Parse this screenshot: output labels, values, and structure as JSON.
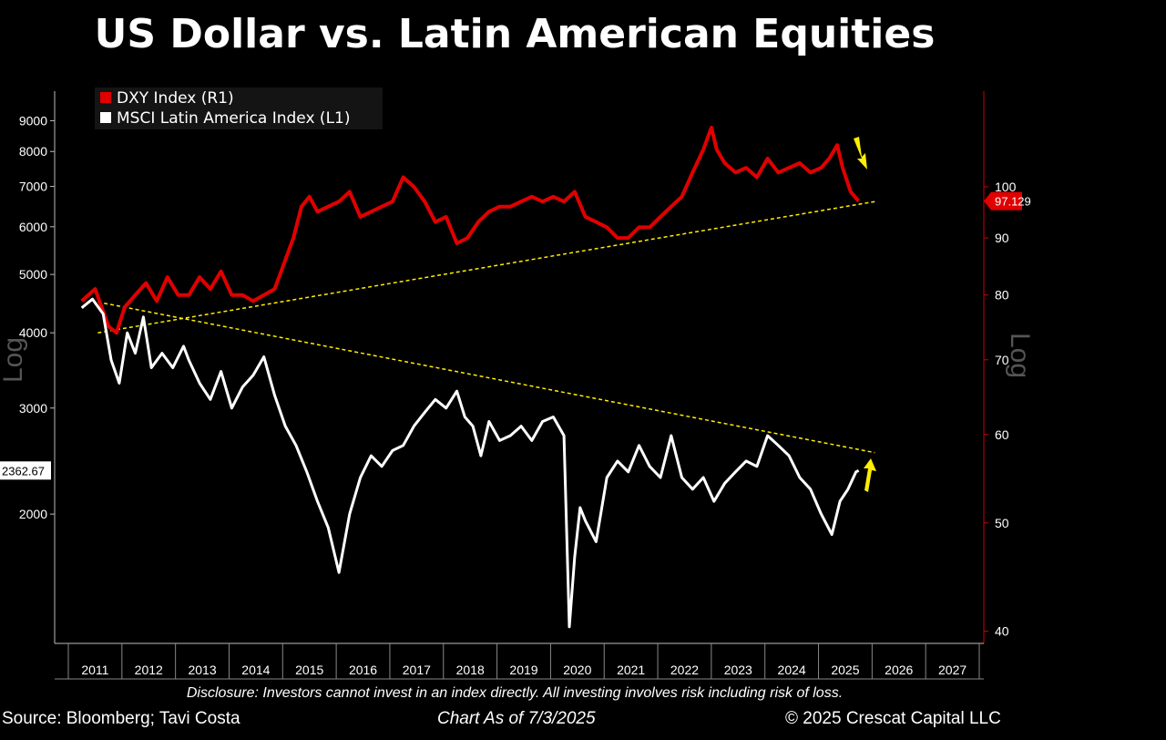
{
  "title": "US Dollar vs. Latin American Equities",
  "disclosure": "Disclosure: Investors cannot invest in an index directly. All investing involves risk including risk of loss.",
  "source": "Source: Bloomberg; Tavi Costa",
  "as_of": "Chart As of 7/3/2025",
  "copyright": "© 2025 Crescat Capital LLC",
  "colors": {
    "dxy": "#e00000",
    "msci": "#ffffff",
    "trend": "#ffee00",
    "background": "#000000"
  },
  "chart_data": {
    "type": "line",
    "x_ticks": [
      "2011",
      "2012",
      "2013",
      "2014",
      "2015",
      "2016",
      "2017",
      "2018",
      "2019",
      "2020",
      "2021",
      "2022",
      "2023",
      "2024",
      "2025",
      "2026",
      "2027"
    ],
    "x_range": [
      2010.75,
      2027.75
    ],
    "left_axis": {
      "label": "Log",
      "scale": "log",
      "range": [
        1220,
        9800
      ],
      "ticks": [
        2000,
        3000,
        4000,
        5000,
        6000,
        7000,
        8000,
        9000
      ],
      "last_value": "2362.67"
    },
    "right_axis": {
      "label": "Log",
      "scale": "log",
      "range": [
        39,
        120
      ],
      "ticks": [
        40,
        50,
        60,
        70,
        80,
        90,
        100
      ],
      "last_value": "97.129"
    },
    "legend": {
      "placement": "top-left",
      "items": [
        "DXY Index (R1)",
        "MSCI Latin America Index (L1)"
      ]
    },
    "series": [
      {
        "name": "DXY Index (R1)",
        "axis": "right",
        "x": [
          2011.0,
          2011.25,
          2011.5,
          2011.65,
          2011.8,
          2012.0,
          2012.2,
          2012.4,
          2012.6,
          2012.8,
          2013.0,
          2013.2,
          2013.4,
          2013.6,
          2013.8,
          2014.0,
          2014.2,
          2014.4,
          2014.6,
          2014.8,
          2014.95,
          2015.1,
          2015.25,
          2015.4,
          2015.6,
          2015.8,
          2016.0,
          2016.2,
          2016.4,
          2016.6,
          2016.8,
          2017.0,
          2017.2,
          2017.4,
          2017.6,
          2017.8,
          2018.0,
          2018.2,
          2018.4,
          2018.6,
          2018.8,
          2019.0,
          2019.2,
          2019.4,
          2019.6,
          2019.8,
          2020.0,
          2020.2,
          2020.4,
          2020.6,
          2020.8,
          2021.0,
          2021.2,
          2021.4,
          2021.6,
          2021.8,
          2022.0,
          2022.2,
          2022.4,
          2022.6,
          2022.75,
          2022.85,
          2023.0,
          2023.2,
          2023.4,
          2023.6,
          2023.8,
          2024.0,
          2024.2,
          2024.4,
          2024.6,
          2024.8,
          2024.95,
          2025.1,
          2025.2,
          2025.35,
          2025.5
        ],
        "values": [
          79,
          81,
          75,
          74,
          78,
          80,
          82,
          79,
          83,
          80,
          80,
          83,
          81,
          84,
          80,
          80,
          79,
          80,
          81,
          86,
          90,
          96,
          98,
          95,
          96,
          97,
          99,
          94,
          95,
          96,
          97,
          102,
          100,
          97,
          93,
          94,
          89,
          90,
          93,
          95,
          96,
          96,
          97,
          98,
          97,
          98,
          97,
          99,
          94,
          93,
          92,
          90,
          90,
          92,
          92,
          94,
          96,
          98,
          103,
          108,
          113,
          108,
          105,
          103,
          104,
          102,
          106,
          103,
          104,
          105,
          103,
          104,
          106,
          109,
          104,
          99,
          97.1
        ]
      },
      {
        "name": "MSCI Latin America Index (L1)",
        "axis": "left",
        "x": [
          2011.0,
          2011.2,
          2011.4,
          2011.55,
          2011.7,
          2011.85,
          2012.0,
          2012.15,
          2012.3,
          2012.5,
          2012.7,
          2012.9,
          2013.0,
          2013.2,
          2013.4,
          2013.6,
          2013.8,
          2014.0,
          2014.2,
          2014.4,
          2014.6,
          2014.8,
          2015.0,
          2015.2,
          2015.4,
          2015.6,
          2015.8,
          2016.0,
          2016.2,
          2016.4,
          2016.6,
          2016.8,
          2017.0,
          2017.2,
          2017.4,
          2017.6,
          2017.8,
          2018.0,
          2018.15,
          2018.3,
          2018.45,
          2018.6,
          2018.8,
          2019.0,
          2019.2,
          2019.4,
          2019.6,
          2019.8,
          2020.0,
          2020.1,
          2020.2,
          2020.3,
          2020.4,
          2020.6,
          2020.8,
          2021.0,
          2021.2,
          2021.4,
          2021.6,
          2021.8,
          2022.0,
          2022.2,
          2022.4,
          2022.6,
          2022.8,
          2023.0,
          2023.2,
          2023.4,
          2023.6,
          2023.8,
          2024.0,
          2024.2,
          2024.4,
          2024.6,
          2024.8,
          2025.0,
          2025.15,
          2025.3,
          2025.45,
          2025.5
        ],
        "values": [
          4400,
          4550,
          4300,
          3600,
          3300,
          4000,
          3700,
          4250,
          3500,
          3700,
          3500,
          3800,
          3600,
          3300,
          3100,
          3450,
          3000,
          3250,
          3400,
          3650,
          3150,
          2800,
          2600,
          2350,
          2100,
          1900,
          1600,
          2000,
          2300,
          2500,
          2400,
          2550,
          2600,
          2800,
          2950,
          3100,
          3000,
          3200,
          2900,
          2800,
          2500,
          2850,
          2650,
          2700,
          2800,
          2650,
          2850,
          2900,
          2700,
          1300,
          1700,
          2050,
          1950,
          1800,
          2300,
          2450,
          2350,
          2600,
          2400,
          2300,
          2700,
          2300,
          2200,
          2300,
          2100,
          2250,
          2350,
          2450,
          2400,
          2700,
          2600,
          2500,
          2300,
          2200,
          2000,
          1850,
          2100,
          2200,
          2350,
          2362.67
        ]
      }
    ],
    "trend_lines": [
      {
        "axis": "right",
        "x": [
          2011.3,
          2025.8
        ],
        "values": [
          74,
          97
        ]
      },
      {
        "axis": "left",
        "x": [
          2011.3,
          2025.8
        ],
        "values": [
          4500,
          2530
        ]
      }
    ]
  }
}
